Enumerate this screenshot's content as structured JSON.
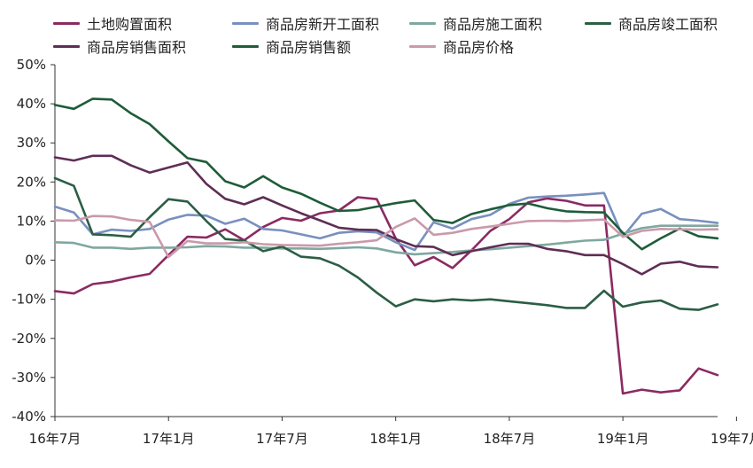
{
  "chart_data": {
    "type": "line",
    "title": "",
    "xlabel": "",
    "ylabel": "",
    "ylim": [
      -40,
      50
    ],
    "yticks": [
      -40,
      -30,
      -20,
      -10,
      0,
      10,
      20,
      30,
      40,
      50
    ],
    "ytick_labels": [
      "-40%",
      "-30%",
      "-20%",
      "-10%",
      "0%",
      "10%",
      "20%",
      "30%",
      "40%",
      "50%"
    ],
    "x_start": "2016-07",
    "x_end": "2019-07",
    "xtick_labels": [
      "16年7月",
      "17年1月",
      "17年7月",
      "18年1月",
      "18年7月",
      "19年1月",
      "19年7月"
    ],
    "legend_position": "top",
    "grid": false,
    "series": [
      {
        "name": "土地购置面积",
        "color": "#8B2A62",
        "values": [
          -7.9,
          -8.5,
          -6.1,
          -5.5,
          -4.4,
          -3.5,
          1.3,
          6.0,
          5.8,
          7.9,
          5.1,
          8.5,
          10.8,
          10.1,
          12.0,
          12.7,
          16.1,
          15.6,
          5.6,
          -1.3,
          0.8,
          -2.0,
          2.5,
          7.5,
          10.5,
          14.8,
          15.8,
          15.2,
          14.0,
          14.0,
          -34.1,
          -33.1,
          -33.8,
          -33.3,
          -27.7,
          -29.4
        ]
      },
      {
        "name": "商品房新开工面积",
        "color": "#7890BE",
        "values": [
          13.7,
          12.2,
          6.6,
          7.8,
          7.5,
          8.0,
          10.4,
          11.6,
          11.4,
          9.3,
          10.6,
          8.0,
          7.6,
          6.6,
          5.6,
          7.0,
          7.4,
          7.1,
          4.6,
          2.6,
          9.7,
          8.1,
          10.5,
          11.6,
          14.4,
          16.0,
          16.3,
          16.5,
          16.8,
          17.2,
          6.0,
          11.9,
          13.1,
          10.5,
          10.1,
          9.5
        ]
      },
      {
        "name": "商品房施工面积",
        "color": "#7FA89F",
        "values": [
          4.6,
          4.4,
          3.2,
          3.2,
          2.9,
          3.2,
          3.2,
          3.3,
          3.6,
          3.5,
          3.2,
          3.2,
          3.0,
          3.0,
          2.9,
          3.1,
          3.3,
          3.0,
          2.0,
          1.5,
          1.8,
          2.1,
          2.5,
          2.8,
          3.2,
          3.6,
          4.0,
          4.5,
          5.0,
          5.2,
          6.8,
          8.2,
          8.8,
          8.8,
          8.8,
          8.8
        ]
      },
      {
        "name": "商品房竣工面积",
        "color": "#2B5E45",
        "values": [
          21.0,
          19.0,
          6.6,
          6.4,
          6.0,
          11.0,
          15.6,
          15.0,
          10.0,
          5.4,
          5.0,
          2.3,
          3.5,
          0.9,
          0.5,
          -1.4,
          -4.4,
          -8.3,
          -11.8,
          -10.0,
          -10.5,
          -10.0,
          -10.3,
          -10.0,
          -10.5,
          -11.0,
          -11.5,
          -12.2,
          -12.2,
          -7.8,
          -11.9,
          -10.8,
          -10.3,
          -12.4,
          -12.7,
          -11.3
        ]
      },
      {
        "name": "商品房销售面积",
        "color": "#5E2E55",
        "values": [
          26.3,
          25.5,
          26.7,
          26.7,
          24.3,
          22.4,
          23.7,
          25.0,
          19.5,
          15.7,
          14.3,
          16.1,
          14.0,
          12.0,
          10.2,
          8.3,
          7.8,
          7.7,
          5.4,
          3.6,
          3.4,
          1.3,
          2.3,
          3.3,
          4.2,
          4.2,
          2.9,
          2.3,
          1.3,
          1.3,
          -1.0,
          -3.6,
          -0.9,
          -0.4,
          -1.6,
          -1.8
        ]
      },
      {
        "name": "商品房销售额",
        "color": "#1E5C3A",
        "values": [
          39.7,
          38.7,
          41.3,
          41.1,
          37.6,
          34.8,
          30.4,
          26.1,
          25.1,
          20.2,
          18.6,
          21.5,
          18.6,
          17.0,
          14.7,
          12.6,
          12.8,
          13.7,
          14.6,
          15.3,
          10.3,
          9.5,
          11.8,
          13.0,
          14.1,
          14.5,
          13.3,
          12.5,
          12.3,
          12.2,
          7.0,
          2.8,
          5.6,
          8.1,
          6.1,
          5.6
        ]
      },
      {
        "name": "商品房价格",
        "color": "#C99AAA",
        "values": [
          10.2,
          10.1,
          11.3,
          11.2,
          10.3,
          9.8,
          0.8,
          4.9,
          4.3,
          4.3,
          4.6,
          4.1,
          3.9,
          3.8,
          3.7,
          4.2,
          4.6,
          5.1,
          8.5,
          10.7,
          6.5,
          7.0,
          8.0,
          8.6,
          9.3,
          10.0,
          10.1,
          10.0,
          10.2,
          10.4,
          6.0,
          7.5,
          8.0,
          7.9,
          7.8,
          7.9
        ]
      }
    ]
  }
}
